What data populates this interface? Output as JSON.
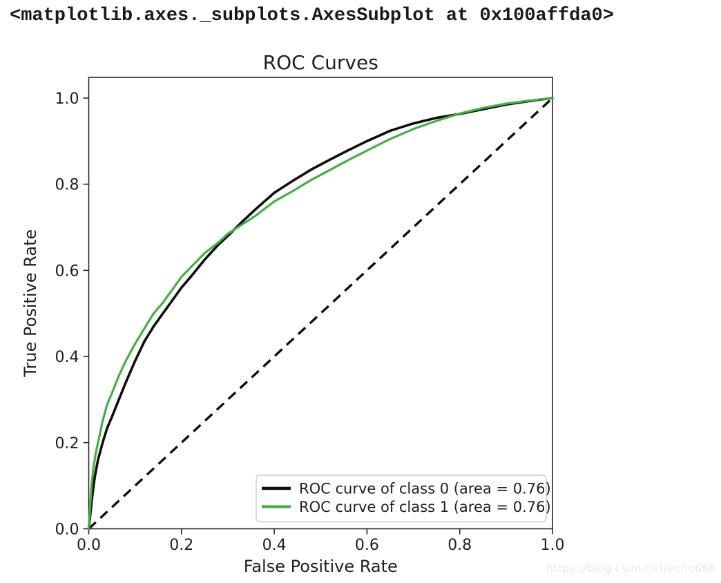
{
  "notebook": {
    "repr_text": "<matplotlib.axes._subplots.AxesSubplot at 0x100affda0>"
  },
  "watermark": {
    "text": "https://blog.csdn.net/echo666",
    "color": "#e9e9e9"
  },
  "chart_data": {
    "type": "line",
    "title": "ROC Curves",
    "xlabel": "False Positive Rate",
    "ylabel": "True Positive Rate",
    "xlim": [
      0.0,
      1.0
    ],
    "ylim": [
      0.0,
      1.048
    ],
    "xticks": [
      "0.0",
      "0.2",
      "0.4",
      "0.6",
      "0.8",
      "1.0"
    ],
    "yticks": [
      "0.0",
      "0.2",
      "0.4",
      "0.6",
      "0.8",
      "1.0"
    ],
    "grid": false,
    "legend_position": "lower right",
    "text_color": "#1f1f1f",
    "spine_color": "#262626",
    "series": [
      {
        "name": "ROC curve of class 0 (area = 0.76)",
        "auc": 0.76,
        "color": "#0d0d0d",
        "line_width": 3.6,
        "points": [
          [
            0.0,
            0.0
          ],
          [
            0.004,
            0.04
          ],
          [
            0.008,
            0.08
          ],
          [
            0.013,
            0.12
          ],
          [
            0.02,
            0.16
          ],
          [
            0.03,
            0.2
          ],
          [
            0.04,
            0.235
          ],
          [
            0.05,
            0.26
          ],
          [
            0.065,
            0.3
          ],
          [
            0.08,
            0.34
          ],
          [
            0.1,
            0.39
          ],
          [
            0.12,
            0.435
          ],
          [
            0.14,
            0.47
          ],
          [
            0.16,
            0.5
          ],
          [
            0.18,
            0.53
          ],
          [
            0.2,
            0.56
          ],
          [
            0.22,
            0.585
          ],
          [
            0.25,
            0.625
          ],
          [
            0.28,
            0.66
          ],
          [
            0.3,
            0.68
          ],
          [
            0.33,
            0.712
          ],
          [
            0.36,
            0.742
          ],
          [
            0.4,
            0.78
          ],
          [
            0.44,
            0.808
          ],
          [
            0.48,
            0.834
          ],
          [
            0.52,
            0.857
          ],
          [
            0.56,
            0.879
          ],
          [
            0.6,
            0.9
          ],
          [
            0.65,
            0.924
          ],
          [
            0.7,
            0.941
          ],
          [
            0.75,
            0.954
          ],
          [
            0.8,
            0.963
          ],
          [
            0.85,
            0.974
          ],
          [
            0.9,
            0.985
          ],
          [
            0.95,
            0.993
          ],
          [
            1.0,
            1.0
          ]
        ]
      },
      {
        "name": "ROC curve of class 1 (area = 0.76)",
        "auc": 0.76,
        "color": "#46ae46",
        "line_width": 3.2,
        "points": [
          [
            0.0,
            0.0
          ],
          [
            0.003,
            0.05
          ],
          [
            0.006,
            0.1
          ],
          [
            0.01,
            0.14
          ],
          [
            0.015,
            0.175
          ],
          [
            0.022,
            0.21
          ],
          [
            0.03,
            0.25
          ],
          [
            0.04,
            0.29
          ],
          [
            0.05,
            0.315
          ],
          [
            0.065,
            0.355
          ],
          [
            0.08,
            0.39
          ],
          [
            0.1,
            0.43
          ],
          [
            0.12,
            0.465
          ],
          [
            0.14,
            0.5
          ],
          [
            0.16,
            0.525
          ],
          [
            0.18,
            0.555
          ],
          [
            0.2,
            0.585
          ],
          [
            0.22,
            0.607
          ],
          [
            0.25,
            0.64
          ],
          [
            0.28,
            0.665
          ],
          [
            0.3,
            0.685
          ],
          [
            0.33,
            0.706
          ],
          [
            0.36,
            0.727
          ],
          [
            0.4,
            0.76
          ],
          [
            0.44,
            0.784
          ],
          [
            0.48,
            0.81
          ],
          [
            0.52,
            0.833
          ],
          [
            0.56,
            0.856
          ],
          [
            0.6,
            0.878
          ],
          [
            0.65,
            0.905
          ],
          [
            0.7,
            0.928
          ],
          [
            0.75,
            0.947
          ],
          [
            0.8,
            0.964
          ],
          [
            0.85,
            0.977
          ],
          [
            0.9,
            0.987
          ],
          [
            0.95,
            0.994
          ],
          [
            1.0,
            1.0
          ]
        ]
      }
    ],
    "reference_line": {
      "name": "chance-diagonal",
      "style": "dashed",
      "color": "#0d0d0d",
      "line_width": 3.4,
      "dash": [
        14,
        9
      ],
      "points": [
        [
          0.0,
          0.0
        ],
        [
          1.0,
          1.0
        ]
      ]
    }
  }
}
